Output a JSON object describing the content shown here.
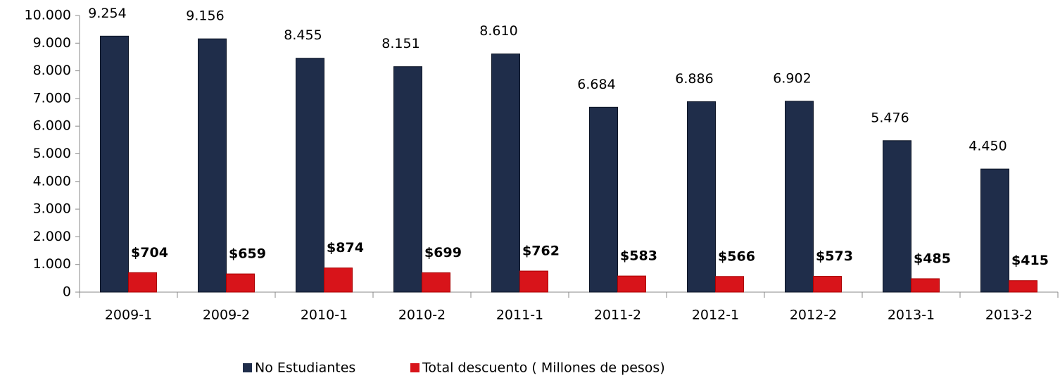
{
  "chart_data": {
    "type": "bar",
    "categories": [
      "2009-1",
      "2009-2",
      "2010-1",
      "2010-2",
      "2011-1",
      "2011-2",
      "2012-1",
      "2012-2",
      "2013-1",
      "2013-2"
    ],
    "series": [
      {
        "name": "No Estudiantes",
        "color": "#1f2d4a",
        "values": [
          9254,
          9156,
          8455,
          8151,
          8610,
          6684,
          6886,
          6902,
          5476,
          4450
        ],
        "value_labels": [
          "9.254",
          "9.156",
          "8.455",
          "8.151",
          "8.610",
          "6.684",
          "6.886",
          "6.902",
          "5.476",
          "4.450"
        ]
      },
      {
        "name": "Total descuento ( Millones de pesos)",
        "color": "#d8141a",
        "values": [
          704,
          659,
          874,
          699,
          762,
          583,
          566,
          573,
          485,
          415
        ],
        "value_labels": [
          "$704",
          "$659",
          "$874",
          "$699",
          "$762",
          "$583",
          "$566",
          "$573",
          "$485",
          "$415"
        ]
      }
    ],
    "ylim": [
      0,
      10000
    ],
    "yticks": [
      0,
      {
        "value": 1000,
        "label": "1.000"
      },
      {
        "value": 2000,
        "label": "2.000"
      },
      {
        "value": 3000,
        "label": "3.000"
      },
      {
        "value": 4000,
        "label": "4.000"
      },
      {
        "value": 5000,
        "label": "5.000"
      },
      {
        "value": 6000,
        "label": "6.000"
      },
      {
        "value": 7000,
        "label": "7.000"
      },
      {
        "value": 8000,
        "label": "8.000"
      },
      {
        "value": 9000,
        "label": "9.000"
      },
      {
        "value": 10000,
        "label": "10.000"
      }
    ],
    "grid": false,
    "legend": "bottom"
  }
}
